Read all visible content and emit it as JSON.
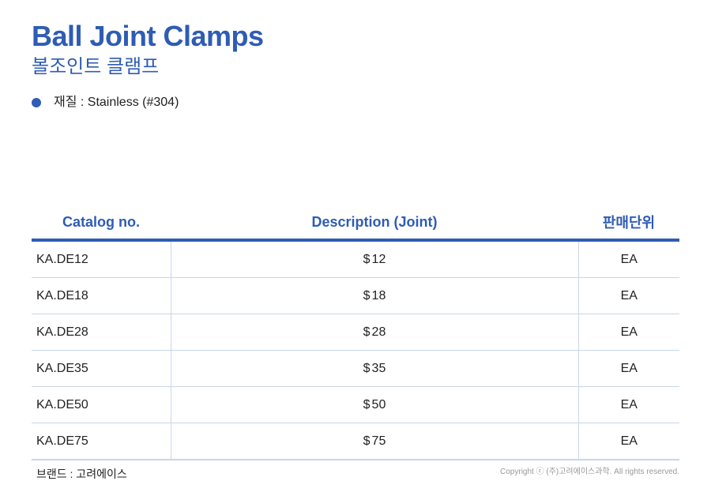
{
  "header": {
    "title": "Ball Joint Clamps",
    "subtitle": "볼조인트 클램프"
  },
  "material": {
    "text": "재질 : Stainless (#304)"
  },
  "table": {
    "headers": {
      "catalog": "Catalog no.",
      "description": "Description (Joint)",
      "unit": "판매단위"
    },
    "rows": [
      {
        "catalog": "KA.DE12",
        "symbol": "$",
        "size": "12",
        "unit": "EA"
      },
      {
        "catalog": "KA.DE18",
        "symbol": "$",
        "size": "18",
        "unit": "EA"
      },
      {
        "catalog": "KA.DE28",
        "symbol": "$",
        "size": "28",
        "unit": "EA"
      },
      {
        "catalog": "KA.DE35",
        "symbol": "$",
        "size": "35",
        "unit": "EA"
      },
      {
        "catalog": "KA.DE50",
        "symbol": "$",
        "size": "50",
        "unit": "EA"
      },
      {
        "catalog": "KA.DE75",
        "symbol": "$",
        "size": "75",
        "unit": "EA"
      }
    ]
  },
  "footer": {
    "brand": "브랜드 : 고려에이스",
    "copyright": "Copyright ⓒ (주)고려에이스과학. All rights reserved."
  },
  "colors": {
    "accent": "#2f5cb4",
    "grid": "#c9d6ea"
  }
}
